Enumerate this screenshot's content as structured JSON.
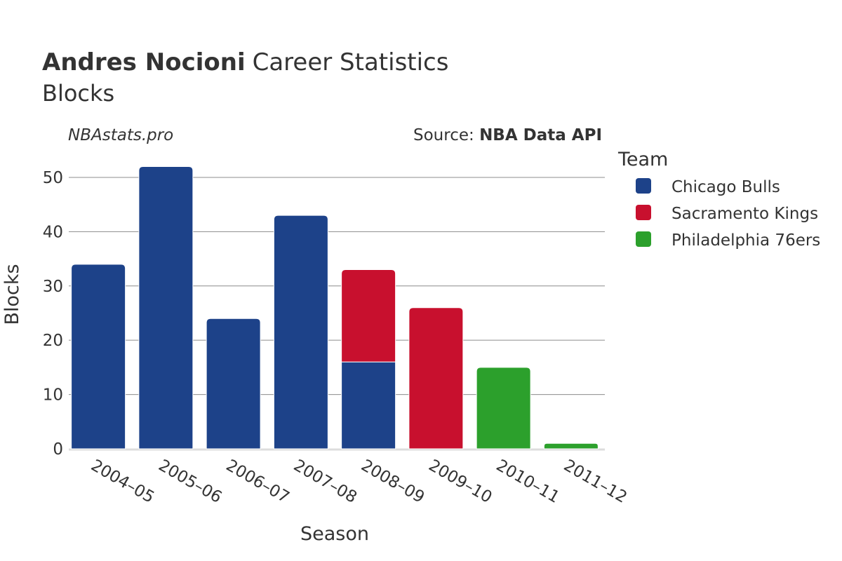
{
  "title": {
    "player": "Andres Nocioni",
    "rest": "Career Statistics",
    "subtitle": "Blocks"
  },
  "watermark": "NBAstats.pro",
  "source": {
    "prefix": "Source: ",
    "name": "NBA Data API"
  },
  "legend": {
    "title": "Team",
    "placement": "right"
  },
  "colors": {
    "Chicago Bulls": "#1d4289",
    "Sacramento Kings": "#c8102e",
    "Philadelphia 76ers": "#2ca02c",
    "grid": "#8c8c8c",
    "axis_line": "#dddddd"
  },
  "chart_data": {
    "type": "bar",
    "stacked": true,
    "title": "Andres Nocioni Career Statistics",
    "subtitle": "Blocks",
    "xlabel": "Season",
    "ylabel": "Blocks",
    "ylim": [
      0,
      54
    ],
    "yticks": [
      0,
      10,
      20,
      30,
      40,
      50
    ],
    "grid": true,
    "categories": [
      "2004–05",
      "2005–06",
      "2006–07",
      "2007–08",
      "2008–09",
      "2009–10",
      "2010–11",
      "2011–12"
    ],
    "series": [
      {
        "name": "Chicago Bulls",
        "values": [
          34,
          52,
          24,
          43,
          16,
          0,
          0,
          0
        ]
      },
      {
        "name": "Sacramento Kings",
        "values": [
          0,
          0,
          0,
          0,
          17,
          26,
          0,
          0
        ]
      },
      {
        "name": "Philadelphia 76ers",
        "values": [
          0,
          0,
          0,
          0,
          0,
          0,
          15,
          1
        ]
      }
    ]
  }
}
